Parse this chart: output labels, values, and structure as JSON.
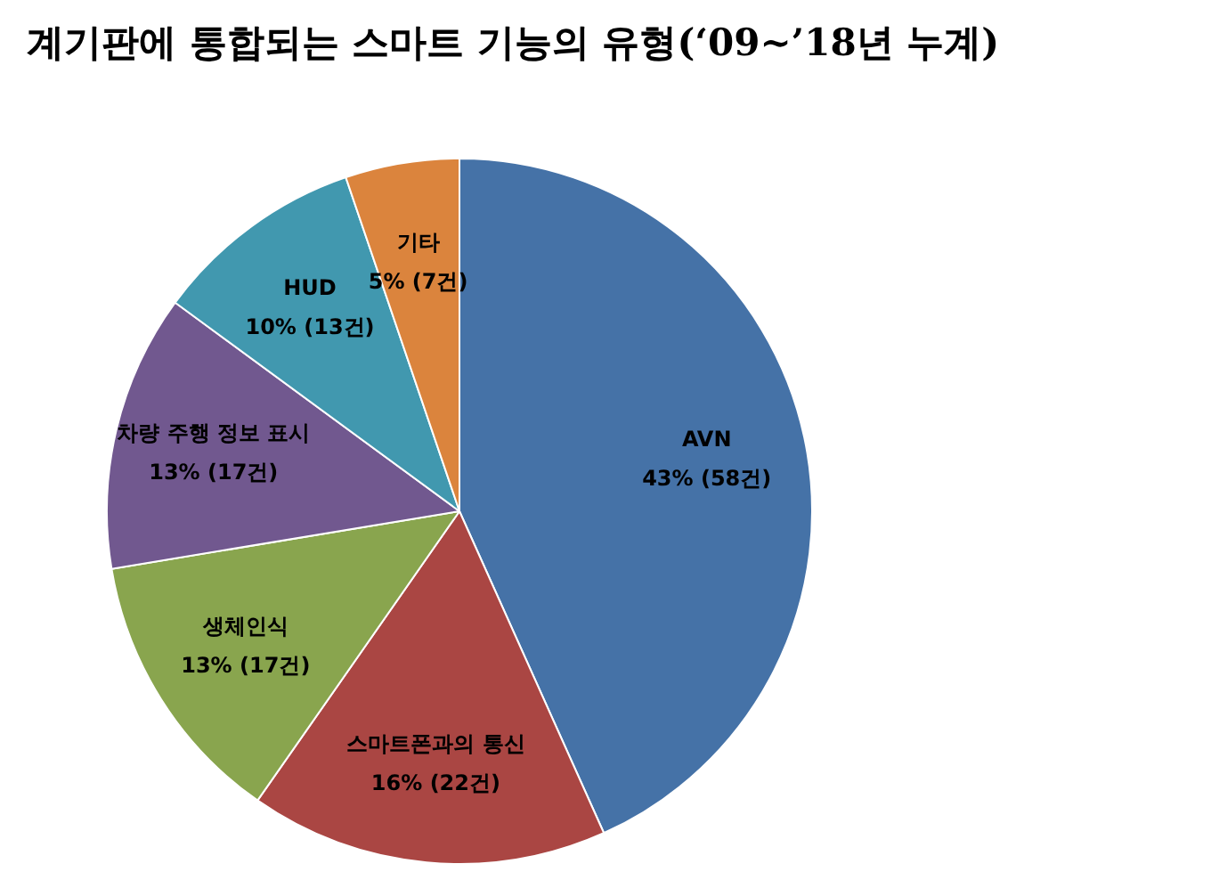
{
  "chart_data": {
    "type": "pie",
    "title": "계기판에 통합되는 스마트 기능의 유형(‘09~’18년 누계)",
    "categories": [
      "AVN",
      "스마트폰과의 통신",
      "생체인식",
      "차량 주행 정보 표시",
      "HUD",
      "기타"
    ],
    "values": [
      58,
      22,
      17,
      17,
      13,
      7
    ],
    "value_labels": [
      "43% (58건)",
      "16% (22건)",
      "13% (17건)",
      "13% (17건)",
      "10% (13건)",
      "5% (7건)"
    ],
    "colors": [
      "#4572a7",
      "#aa4643",
      "#89a54e",
      "#71588f",
      "#4198af",
      "#db843d"
    ]
  }
}
